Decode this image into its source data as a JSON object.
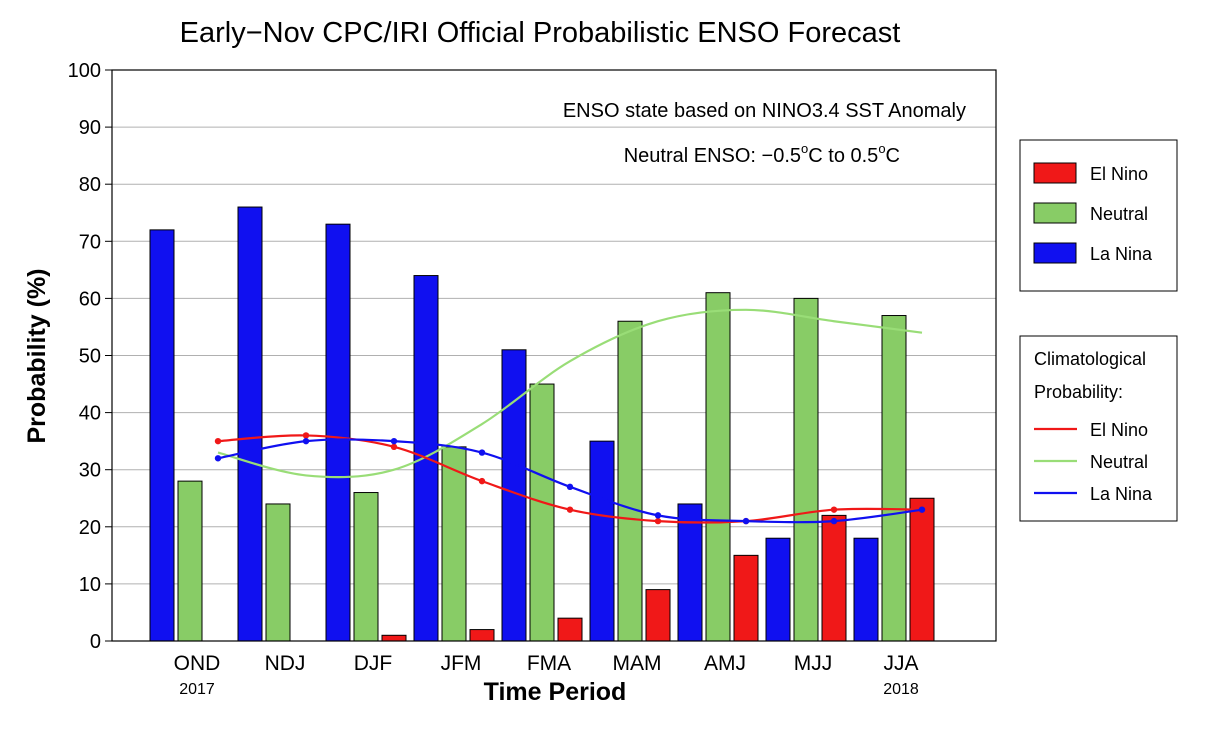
{
  "chart_data": {
    "type": "bar",
    "title": "Early−Nov CPC/IRI Official Probabilistic ENSO Forecast",
    "xlabel": "Time Period",
    "ylabel": "Probability (%)",
    "ylim": [
      0,
      100
    ],
    "yticks": [
      0,
      10,
      20,
      30,
      40,
      50,
      60,
      70,
      80,
      90,
      100
    ],
    "grid": true,
    "categories": [
      "OND",
      "NDJ",
      "DJF",
      "JFM",
      "FMA",
      "MAM",
      "AMJ",
      "MJJ",
      "JJA"
    ],
    "year_labels": [
      {
        "category_index": 0,
        "text": "2017"
      },
      {
        "category_index": 8,
        "text": "2018"
      }
    ],
    "annotations": {
      "line1": "ENSO state based on NINO3.4 SST Anomaly",
      "line2_prefix": "Neutral ENSO: −0.5",
      "line2_middle": "C to 0.5",
      "line2_suffix": "C",
      "degree": "o"
    },
    "series": [
      {
        "name": "La Nina",
        "color": "#1010f0",
        "values": [
          72,
          76,
          73,
          64,
          51,
          35,
          24,
          18,
          18
        ]
      },
      {
        "name": "Neutral",
        "color": "#88cc66",
        "values": [
          28,
          24,
          26,
          34,
          45,
          56,
          61,
          60,
          57
        ]
      },
      {
        "name": "El Nino",
        "color": "#f01818",
        "values": [
          0,
          0,
          1,
          2,
          4,
          9,
          15,
          22,
          25
        ]
      }
    ],
    "legend": {
      "placement": "right",
      "entries": [
        "El Nino",
        "Neutral",
        "La Nina"
      ]
    },
    "climatology": {
      "title_line1": "Climatological",
      "title_line2": "Probability:",
      "series": [
        {
          "name": "El Nino",
          "color": "#f01818",
          "values": [
            35,
            36,
            34,
            28,
            23,
            21,
            21,
            23,
            23
          ],
          "markers": true
        },
        {
          "name": "Neutral",
          "color": "#99dd77",
          "values": [
            33,
            29,
            30,
            38,
            49,
            56,
            58,
            56,
            54
          ],
          "markers": false
        },
        {
          "name": "La Nina",
          "color": "#1010f0",
          "values": [
            32,
            35,
            35,
            33,
            27,
            22,
            21,
            21,
            23
          ],
          "markers": true
        }
      ]
    }
  }
}
